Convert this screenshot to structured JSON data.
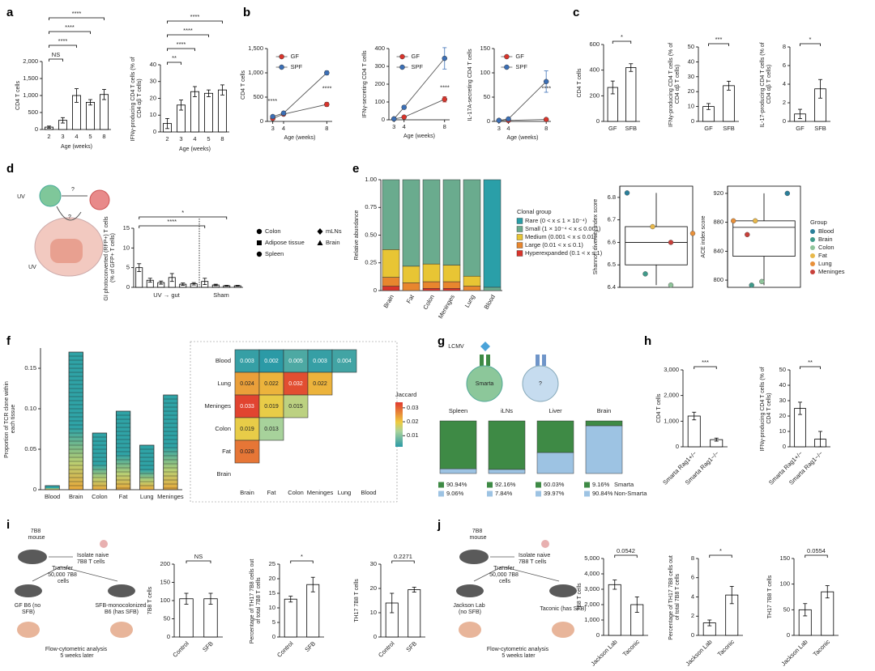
{
  "panels_note_free": null,
  "illustrations": {
    "d": [
      "UV",
      "?",
      "?",
      "UV"
    ],
    "g": [
      "LCMV",
      "Smarta",
      "?"
    ],
    "i": [
      "7B8 mouse",
      "Isolate naive 7B8 T cells",
      "Transfer 50,000 7B8 cells",
      "GF B6 (no SFB)",
      "SFB-monocolonized B6 (has SFB)",
      "Flow-cytometric analysis 5 weeks later"
    ],
    "j": [
      "7B8 mouse",
      "Isolate naive 7B8 T cells",
      "Transfer 50,000 7B8 cells",
      "Jackson Lab (no SFB)",
      "Taconic (has SFB)",
      "Flow-cytometric analysis 5 weeks later"
    ]
  },
  "chart_data": [
    {
      "panel": "a",
      "type": "bar",
      "categories": [
        "2",
        "3",
        "4",
        "5",
        "8"
      ],
      "values": [
        70,
        270,
        1000,
        800,
        1030
      ],
      "errors": [
        30,
        80,
        200,
        80,
        150
      ],
      "color": "#ffffff",
      "ylim": [
        0,
        2000
      ],
      "yticks": [
        0,
        500,
        {
          "value": 1000,
          "label": "1,000"
        },
        {
          "value": 1500,
          "label": "1,500"
        },
        {
          "value": 2000,
          "label": "2,000"
        }
      ],
      "ylabel": "CD4 T cells",
      "xlabel": "Age (weeks)",
      "annotations": [
        "NS",
        "****",
        "****",
        "****"
      ]
    },
    {
      "type": "bar",
      "categories": [
        "2",
        "3",
        "4",
        "5",
        "8"
      ],
      "values": [
        5,
        16,
        24,
        23,
        25
      ],
      "errors": [
        3,
        3,
        3,
        2,
        3
      ],
      "color": "#ffffff",
      "ylim": [
        0,
        40
      ],
      "yticks": [
        0,
        10,
        20,
        30,
        40
      ],
      "ylabel": "IFNγ-producing CD4 T cells (% of CD4 αβ T cells)",
      "xlabel": "Age (weeks)",
      "annotations": [
        "**",
        "****",
        "****",
        "****"
      ]
    },
    {
      "panel": "b",
      "type": "line",
      "x": [
        3,
        4,
        8
      ],
      "xlim": [
        2.5,
        8.5
      ],
      "xticks": [
        3,
        4,
        8
      ],
      "series": [
        {
          "name": "GF",
          "color": "#d9342b",
          "values": [
            60,
            150,
            350
          ],
          "errors": [
            10,
            15,
            40
          ]
        },
        {
          "name": "SPF",
          "color": "#3b6fb6",
          "values": [
            100,
            170,
            1000
          ],
          "errors": [
            15,
            20,
            40
          ]
        }
      ],
      "ylim": [
        0,
        1500
      ],
      "yticks": [
        0,
        500,
        {
          "value": 1000,
          "label": "1,000"
        },
        {
          "value": 1500,
          "label": "1,500"
        }
      ],
      "ylabel": "CD4 T cells",
      "xlabel": "Age (weeks)",
      "annotations": [
        "****",
        "****"
      ]
    },
    {
      "type": "line",
      "x": [
        3,
        4,
        8
      ],
      "xlim": [
        2.5,
        8.5
      ],
      "xticks": [
        3,
        4,
        8
      ],
      "series": [
        {
          "name": "GF",
          "color": "#d9342b",
          "values": [
            5,
            15,
            115
          ],
          "errors": [
            2,
            5,
            15
          ]
        },
        {
          "name": "SPF",
          "color": "#3b6fb6",
          "values": [
            5,
            70,
            345
          ],
          "errors": [
            3,
            10,
            60
          ]
        }
      ],
      "ylim": [
        0,
        400
      ],
      "yticks": [
        0,
        100,
        200,
        300,
        400
      ],
      "ylabel": "IFNγ-secreting CD4 T cells",
      "xlabel": "Age (weeks)",
      "annotations": [
        "****"
      ]
    },
    {
      "type": "line",
      "x": [
        3,
        4,
        8
      ],
      "xlim": [
        2.5,
        8.5
      ],
      "xticks": [
        3,
        4,
        8
      ],
      "series": [
        {
          "name": "GF",
          "color": "#d9342b",
          "values": [
            2,
            2,
            4
          ],
          "errors": [
            1,
            1,
            2
          ]
        },
        {
          "name": "SPF",
          "color": "#3b6fb6",
          "values": [
            2,
            5,
            82
          ],
          "errors": [
            1,
            2,
            22
          ]
        }
      ],
      "ylim": [
        0,
        150
      ],
      "yticks": [
        0,
        50,
        100,
        150
      ],
      "ylabel": "IL-17A-secreting CD4 T cells",
      "xlabel": "Age (weeks)",
      "annotations": [
        "****"
      ]
    },
    {
      "panel": "c",
      "type": "bar",
      "categories": [
        "GF",
        "SFB"
      ],
      "values": [
        265,
        420
      ],
      "errors": [
        50,
        30
      ],
      "color": "#ffffff",
      "ylim": [
        0,
        600
      ],
      "yticks": [
        0,
        200,
        400,
        600
      ],
      "ylabel": "CD4 T cells",
      "annotations": [
        "*"
      ]
    },
    {
      "type": "bar",
      "categories": [
        "GF",
        "SFB"
      ],
      "values": [
        10,
        24
      ],
      "errors": [
        2,
        3
      ],
      "color": "#ffffff",
      "ylim": [
        0,
        50
      ],
      "yticks": [
        0,
        10,
        20,
        30,
        40,
        50
      ],
      "ylabel": "IFNγ-producing CD4 T cells (% of CD4 αβ T cells)",
      "annotations": [
        "***"
      ]
    },
    {
      "type": "bar",
      "categories": [
        "GF",
        "SFB"
      ],
      "values": [
        0.8,
        3.5
      ],
      "errors": [
        0.5,
        1
      ],
      "color": "#ffffff",
      "ylim": [
        0,
        8
      ],
      "yticks": [
        0,
        2,
        4,
        6,
        8
      ],
      "ylabel": "IL-17-producing CD4 T cells (% of CD4 αβ T cells)",
      "annotations": [
        "*"
      ]
    },
    {
      "panel": "d",
      "type": "bar",
      "categories": [
        null,
        null,
        null,
        null,
        null,
        null,
        null,
        null,
        null,
        null
      ],
      "values": [
        5,
        1.8,
        1.2,
        2.5,
        0.8,
        0.9,
        1.5,
        0.6,
        0.4,
        0.4
      ],
      "errors": [
        1,
        0.5,
        0.4,
        1,
        0.3,
        0.3,
        0.8,
        0.2,
        0.1,
        0.1
      ],
      "color": "#ffffff",
      "ylim": [
        0,
        15
      ],
      "yticks": [
        0,
        5,
        10,
        15
      ],
      "ylabel": "GI photoconverted (RFP+) T cells (% of GFP+ T cells)",
      "group_labels": [
        "UV → gut",
        "Sham"
      ],
      "legend": [
        "Colon",
        "Adipose tissue",
        "Spleen",
        "mLNs",
        "Brain"
      ],
      "annotations": [
        "****",
        "*"
      ]
    },
    {
      "panel": "e",
      "type": "stacked_bar",
      "categories": [
        "Brain",
        "Fat",
        "Colon",
        "Meninges",
        "Lung",
        "Blood"
      ],
      "legend_title": "Clonal group",
      "series": [
        {
          "name": "Rare (0 < x ≤ 1 × 10⁻⁴)",
          "color": "#2a9fa8",
          "values": [
            0,
            0,
            0,
            0,
            0,
            0.97
          ]
        },
        {
          "name": "Small (1 × 10⁻⁴ < x ≤ 0.001)",
          "color": "#6aab8e",
          "values": [
            0.63,
            0.78,
            0.76,
            0.77,
            0.87,
            0.03
          ]
        },
        {
          "name": "Medium (0.001 < x ≤ 0.01)",
          "color": "#e8c534",
          "values": [
            0.25,
            0.15,
            0.16,
            0.15,
            0.09,
            0
          ]
        },
        {
          "name": "Large (0.01 < x ≤ 0.1)",
          "color": "#e8862e",
          "values": [
            0.08,
            0.07,
            0.06,
            0.06,
            0.04,
            0
          ]
        },
        {
          "name": "Hyperexpanded (0.1 < x ≤ 1)",
          "color": "#d9342b",
          "values": [
            0.04,
            0,
            0.02,
            0.02,
            0,
            0
          ]
        }
      ],
      "ylim": [
        0,
        1
      ],
      "yticks": [
        0,
        0.25,
        {
          "value": 0.5,
          "label": "0.50"
        },
        0.75,
        {
          "value": 1,
          "label": "1.00"
        }
      ],
      "ylabel": "Relative abundance"
    },
    {
      "type": "box",
      "values": [
        6.82,
        6.46,
        6.41,
        6.67,
        6.64,
        6.6
      ],
      "colors": [
        "#2b7f9a",
        "#3f9a8a",
        "#8fc49a",
        "#e8b84a",
        "#e8903a",
        "#c8403a"
      ],
      "box": {
        "whisker_low": 6.41,
        "q1": 6.5,
        "median": 6.6,
        "q3": 6.67,
        "whisker_high": 6.82
      },
      "ylim": [
        6.4,
        6.85
      ],
      "yticks": [
        6.4,
        6.5,
        6.6,
        6.7,
        6.8
      ],
      "ylabel": "Shannon diversity index score"
    },
    {
      "type": "box",
      "values": [
        920,
        793,
        798,
        882,
        882,
        863
      ],
      "colors": [
        "#2b7f9a",
        "#3f9a8a",
        "#8fc49a",
        "#e8b84a",
        "#e8903a",
        "#c8403a"
      ],
      "groups": [
        "Blood",
        "Brain",
        "Colon",
        "Fat",
        "Lung",
        "Meninges"
      ],
      "legend_title": "Group",
      "box": {
        "whisker_low": 793,
        "q1": 833,
        "median": 873,
        "q3": 882,
        "whisker_high": 920
      },
      "ylim": [
        790,
        930
      ],
      "yticks": [
        800,
        840,
        880,
        920
      ],
      "ylabel": "ACE index score"
    },
    {
      "panel": "f",
      "type": "bar",
      "categories": [
        "Blood",
        "Brain",
        "Colon",
        "Fat",
        "Lung",
        "Meninges"
      ],
      "values": [
        0.005,
        0.17,
        0.07,
        0.097,
        0.055,
        0.117
      ],
      "color": "#2fa3a6",
      "ylim": [
        0,
        0.175
      ],
      "yticks": [
        0,
        0.05,
        {
          "value": 0.1,
          "label": "0.10"
        },
        0.15
      ],
      "ylabel": "Proportion of TCR clone within each tissue"
    },
    {
      "type": "heatmap",
      "rows": [
        "Blood",
        "Lung",
        "Meninges",
        "Colon",
        "Fat",
        "Brain"
      ],
      "columns": [
        "Brain",
        "Fat",
        "Colon",
        "Meninges",
        "Lung",
        "Blood"
      ],
      "matrix": [
        [
          0.003,
          0.002,
          0.005,
          0.003,
          0.004,
          null
        ],
        [
          0.024,
          0.022,
          0.032,
          0.022,
          null,
          null
        ],
        [
          0.033,
          0.019,
          0.015,
          null,
          null,
          null
        ],
        [
          0.019,
          0.013,
          null,
          null,
          null,
          null
        ],
        [
          0.028,
          null,
          null,
          null,
          null,
          null
        ],
        [
          null,
          null,
          null,
          null,
          null,
          null
        ]
      ],
      "colorbar_title": "Jaccard",
      "clim": [
        0.002,
        0.034
      ],
      "cticks": [
        0.01,
        0.02,
        0.03
      ]
    },
    {
      "panel": "g",
      "type": "stacked_bar",
      "categories": [
        "Spleen",
        "iLNs",
        "Liver",
        "Brain"
      ],
      "series": [
        {
          "name": "Smarta",
          "color": "#3e8a45",
          "values": [
            90.94,
            92.16,
            60.03,
            9.16
          ],
          "value_labels": [
            "90.94%",
            "92.16%",
            "60.03%",
            "9.16%"
          ]
        },
        {
          "name": "Non-Smarta",
          "color": "#9dc3e3",
          "values": [
            9.06,
            7.84,
            39.97,
            90.84
          ],
          "value_labels": [
            "9.06%",
            "7.84%",
            "39.97%",
            "90.84%"
          ]
        }
      ]
    },
    {
      "panel": "h",
      "type": "bar",
      "categories": [
        "Smarta Rag1+/−",
        "Smarta Rag1−/−"
      ],
      "values": [
        1200,
        280
      ],
      "errors": [
        150,
        60
      ],
      "color": "#ffffff",
      "ylim": [
        0,
        3000
      ],
      "yticks": [
        0,
        {
          "value": 1000,
          "label": "1,000"
        },
        {
          "value": 2000,
          "label": "2,000"
        },
        {
          "value": 3000,
          "label": "3,000"
        }
      ],
      "ylabel": "CD4 T cells",
      "annotations": [
        "***"
      ]
    },
    {
      "type": "bar",
      "categories": [
        "Smarta Rag1+/−",
        "Smarta Rag1−/−"
      ],
      "values": [
        25,
        5
      ],
      "errors": [
        4,
        5
      ],
      "color": "#ffffff",
      "ylim": [
        0,
        50
      ],
      "yticks": [
        0,
        10,
        20,
        30,
        40,
        50
      ],
      "ylabel": "IFNγ-producing CD4 T cells (% of CD4 T cells)",
      "annotations": [
        "**"
      ]
    },
    {
      "panel": "i",
      "type": "bar",
      "categories": [
        "Control",
        "SFB"
      ],
      "values": [
        105,
        105
      ],
      "errors": [
        15,
        15
      ],
      "color": "#ffffff",
      "ylim": [
        0,
        200
      ],
      "yticks": [
        0,
        50,
        100,
        150,
        200
      ],
      "ylabel": "7B8 T cells",
      "annotations": [
        "NS"
      ]
    },
    {
      "type": "bar",
      "categories": [
        "Control",
        "SFB"
      ],
      "values": [
        13,
        18
      ],
      "errors": [
        1,
        2.5
      ],
      "color": "#ffffff",
      "ylim": [
        0,
        25
      ],
      "yticks": [
        0,
        5,
        10,
        15,
        20,
        25
      ],
      "ylabel": "Percentage of TH17 7B8 cells out of total 7B8 T cells",
      "annotations": [
        "*"
      ]
    },
    {
      "type": "bar",
      "categories": [
        "Control",
        "SFB"
      ],
      "values": [
        14,
        19.5
      ],
      "errors": [
        4,
        1
      ],
      "color": "#ffffff",
      "ylim": [
        0,
        30
      ],
      "yticks": [
        0,
        10,
        20,
        30
      ],
      "ylabel": "TH17 7B8 T cells",
      "annotations": [
        "0.2271"
      ]
    },
    {
      "panel": "j",
      "type": "bar",
      "categories": [
        "Jackson Lab",
        "Taconic"
      ],
      "values": [
        3300,
        2000
      ],
      "errors": [
        300,
        500
      ],
      "color": "#ffffff",
      "ylim": [
        0,
        5000
      ],
      "yticks": [
        0,
        {
          "value": 1000,
          "label": "1,000"
        },
        {
          "value": 2000,
          "label": "2,000"
        },
        {
          "value": 3000,
          "label": "3,000"
        },
        {
          "value": 4000,
          "label": "4,000"
        },
        {
          "value": 5000,
          "label": "5,000"
        }
      ],
      "ylabel": "7B8 T cells",
      "annotations": [
        "0.0542"
      ]
    },
    {
      "type": "bar",
      "categories": [
        "Jackson Lab",
        "Taconic"
      ],
      "values": [
        1.3,
        4.2
      ],
      "errors": [
        0.3,
        0.9
      ],
      "color": "#ffffff",
      "ylim": [
        0,
        8
      ],
      "yticks": [
        0,
        2,
        4,
        6,
        8
      ],
      "ylabel": "Percentage of TH17 7B8 cells out of total 7B8 T cells",
      "annotations": [
        "*"
      ]
    },
    {
      "type": "bar",
      "categories": [
        "Jackson Lab",
        "Taconic"
      ],
      "values": [
        50,
        85
      ],
      "errors": [
        12,
        12
      ],
      "color": "#ffffff",
      "ylim": [
        0,
        150
      ],
      "yticks": [
        0,
        50,
        100,
        150
      ],
      "ylabel": "TH17 7B8 T cells",
      "annotations": [
        "0.0554"
      ]
    }
  ]
}
